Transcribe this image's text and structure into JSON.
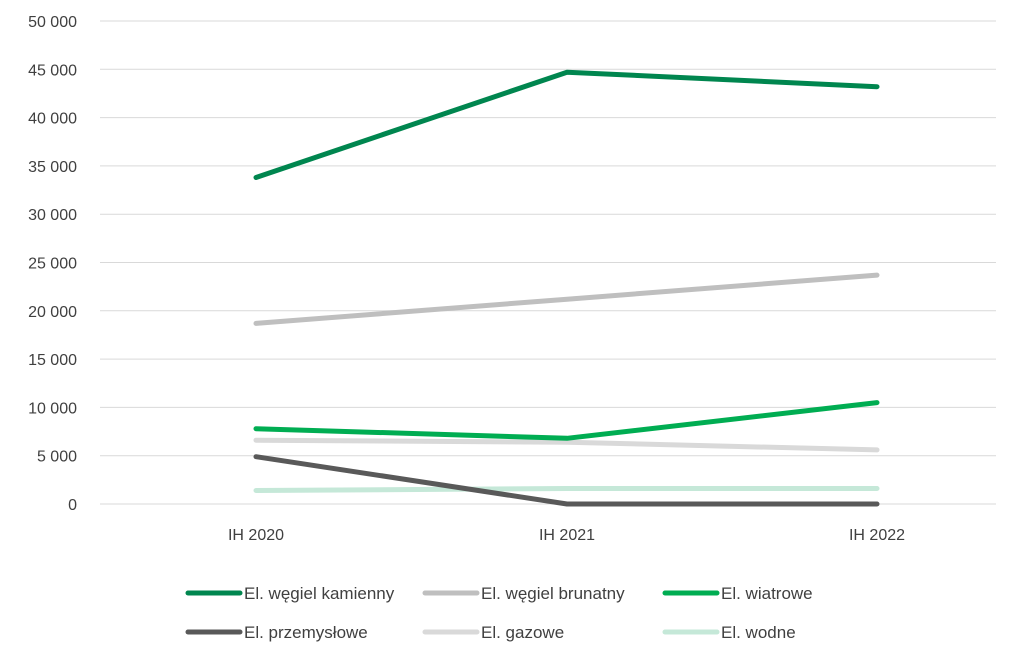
{
  "chart_data": {
    "type": "line",
    "categories": [
      "IH 2020",
      "IH 2021",
      "IH 2022"
    ],
    "ylim": [
      0,
      50000
    ],
    "y_ticks": [
      0,
      5000,
      10000,
      15000,
      20000,
      25000,
      30000,
      35000,
      40000,
      45000,
      50000
    ],
    "y_tick_labels": [
      "0",
      "5 000",
      "10 000",
      "15 000",
      "20 000",
      "25 000",
      "30 000",
      "35 000",
      "40 000",
      "45 000",
      "50 000"
    ],
    "grid": true,
    "legend_position": "bottom",
    "series": [
      {
        "name": "El. węgiel kamienny",
        "values": [
          33800,
          44700,
          43200
        ],
        "color": "#00864f"
      },
      {
        "name": "El. węgiel brunatny",
        "values": [
          18700,
          21200,
          23700
        ],
        "color": "#bfbfbf"
      },
      {
        "name": "El. wiatrowe",
        "values": [
          7800,
          6800,
          10500
        ],
        "color": "#00ad52"
      },
      {
        "name": "El. przemysłowe",
        "values": [
          4900,
          0,
          0
        ],
        "color": "#595959"
      },
      {
        "name": "El. gazowe",
        "values": [
          6600,
          6400,
          5600
        ],
        "color": "#d9d9d9"
      },
      {
        "name": "El. wodne",
        "values": [
          1400,
          1600,
          1600
        ],
        "color": "#c5e8d8"
      }
    ]
  }
}
